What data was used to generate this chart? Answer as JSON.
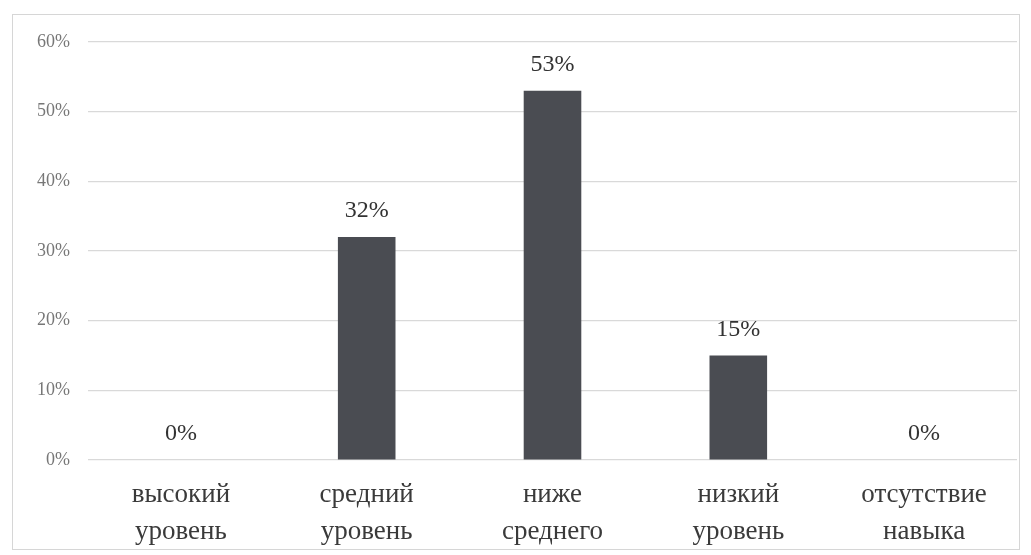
{
  "chart_data": {
    "type": "bar",
    "categories": [
      "высокий уровень",
      "средний уровень",
      "ниже среднего",
      "низкий уровень",
      "отсутствие навыка"
    ],
    "values": [
      0,
      32,
      53,
      15,
      0
    ],
    "color": "#4a4c52",
    "value_labels": [
      "0%",
      "32%",
      "53%",
      "15%",
      "0%"
    ],
    "ylim": [
      0,
      60
    ],
    "yticks": [
      {
        "value": 0,
        "label": "0%"
      },
      {
        "value": 10,
        "label": "10%"
      },
      {
        "value": 20,
        "label": "20%"
      },
      {
        "value": 30,
        "label": "30%"
      },
      {
        "value": 40,
        "label": "40%"
      },
      {
        "value": 50,
        "label": "50%"
      },
      {
        "value": 60,
        "label": "60%"
      }
    ],
    "grid": "y"
  }
}
